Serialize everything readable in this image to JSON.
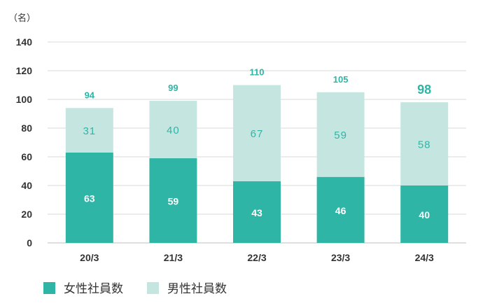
{
  "chart_data": {
    "type": "bar",
    "stacked": true,
    "unit_label": "（名）",
    "categories": [
      "20/3",
      "21/3",
      "22/3",
      "23/3",
      "24/3"
    ],
    "series": [
      {
        "name": "女性社員数",
        "values": [
          63,
          59,
          43,
          46,
          40
        ],
        "color": "#2fb5a5",
        "label_color": "#ffffff"
      },
      {
        "name": "男性社員数",
        "values": [
          31,
          40,
          67,
          59,
          58
        ],
        "color": "#c5e6e0",
        "label_color": "#2fb5a5"
      }
    ],
    "totals": [
      "94",
      "99",
      "110",
      "105",
      "98"
    ],
    "highlight_total_index": 4,
    "y_ticks": [
      "0",
      "20",
      "40",
      "60",
      "80",
      "100",
      "120",
      "140"
    ],
    "ylim": [
      0,
      140
    ],
    "grid": true,
    "legend_position": "bottom-left",
    "colors": {
      "axis_text": "#333333",
      "gridline": "#d9d9d9",
      "total_label": "#2fb5a5"
    }
  }
}
